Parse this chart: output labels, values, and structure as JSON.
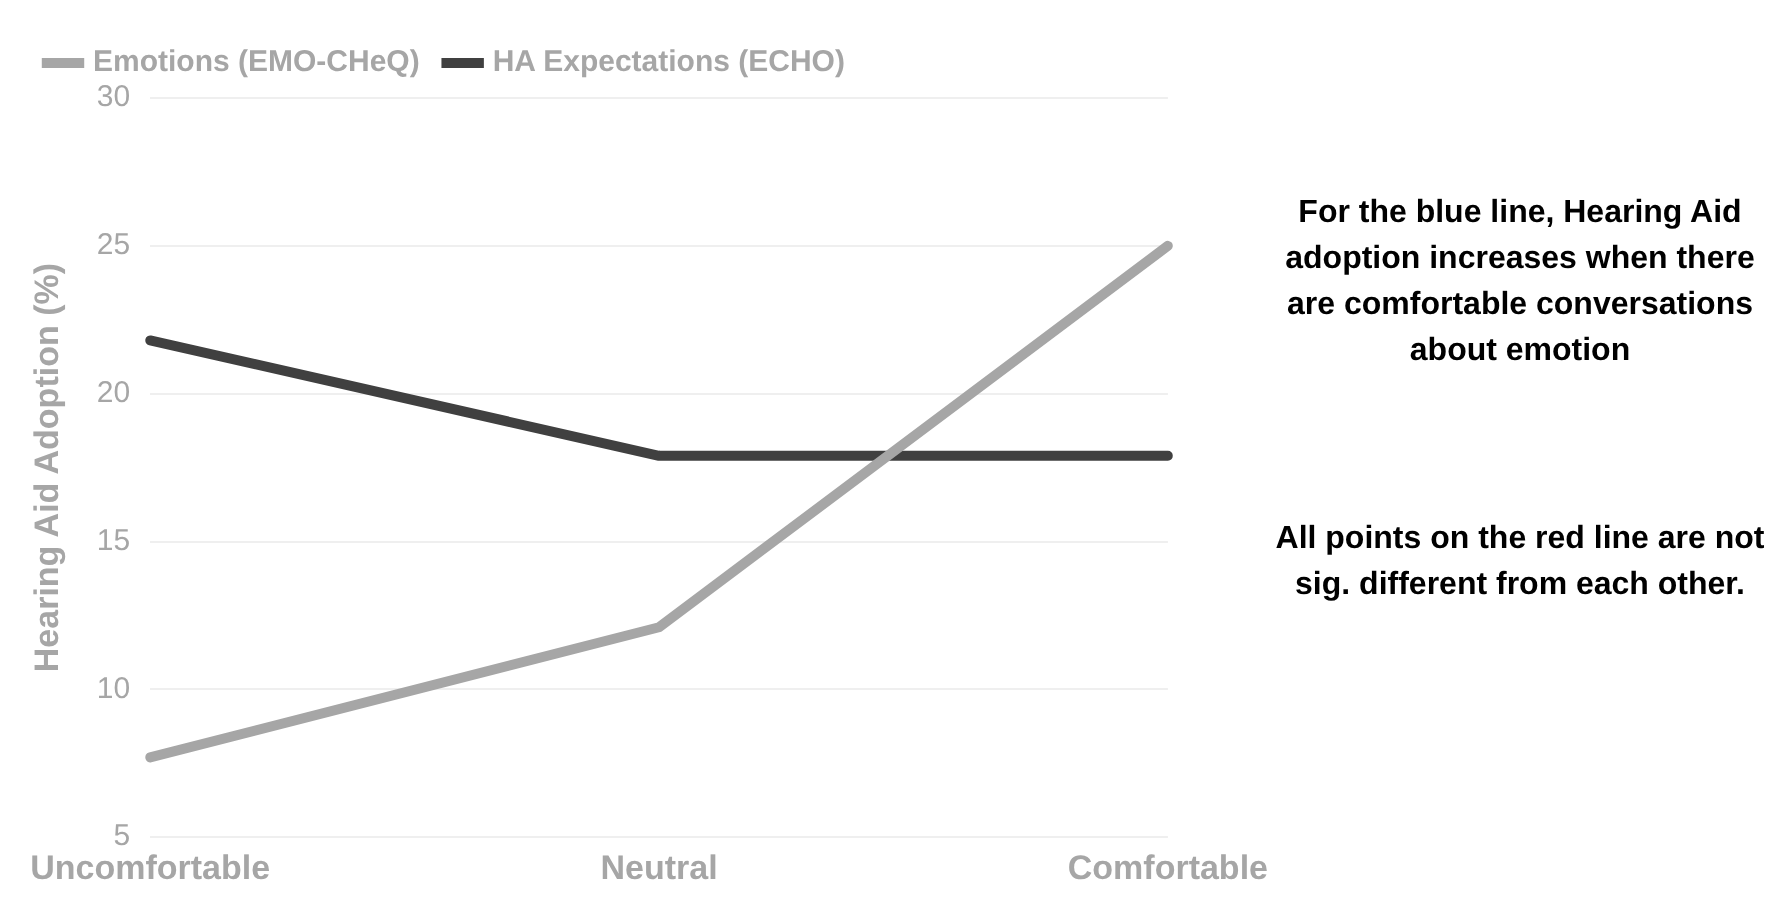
{
  "chart_data": {
    "type": "line",
    "ylabel": "Hearing Aid Adoption (%)",
    "categories": [
      "Uncomfortable",
      "Neutral",
      "Comfortable"
    ],
    "series": [
      {
        "name": "Emotions (EMO-CHeQ)",
        "color": "#a6a6a6",
        "values": [
          7.7,
          12.1,
          25
        ]
      },
      {
        "name": "HA Expectations (ECHO)",
        "color": "#404040",
        "values": [
          21.8,
          17.9,
          17.9
        ]
      }
    ],
    "ylim": [
      5,
      30
    ],
    "yticks": [
      5,
      10,
      15,
      20,
      25,
      30
    ],
    "grid": "y",
    "legend": "top left",
    "marker": "none",
    "line_style": "solid",
    "annotations": [
      "For the blue line, Hearing Aid adoption increases when there are comfortable conversations about emotion",
      "All points on the red line are not sig. different from each other."
    ]
  }
}
